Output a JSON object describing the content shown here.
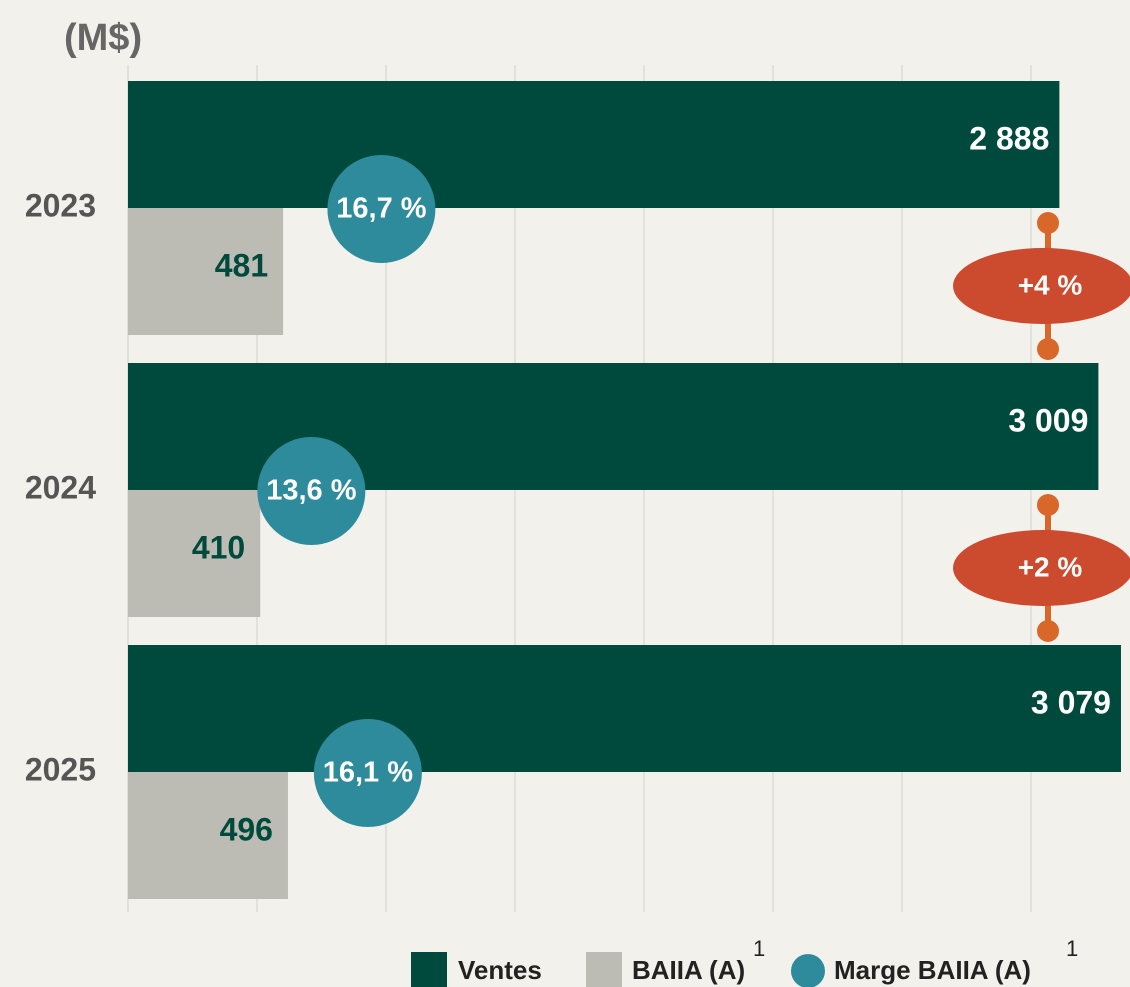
{
  "chart_data": {
    "type": "bar",
    "title": "(M$)",
    "categories": [
      "2023",
      "2024",
      "2025"
    ],
    "series": [
      {
        "name": "Ventes",
        "color": "#004a3d",
        "values": [
          2888,
          3009,
          3079
        ],
        "value_labels": [
          "2 888",
          "3 009",
          "3 079"
        ]
      },
      {
        "name": "BAIIA (A)",
        "note": "1",
        "color": "#bdbcb4",
        "values": [
          481,
          410,
          496
        ]
      },
      {
        "name": "Marge BAIIA (A)",
        "note": "1",
        "color": "#2e8b9b",
        "axis": "y2",
        "values": [
          16.7,
          13.6,
          16.1
        ],
        "value_labels": [
          "16,7 %",
          "13,6 %",
          "16,1 %"
        ]
      }
    ],
    "annotations": [
      "+4 %",
      "+2 %"
    ],
    "xlim": [
      0,
      3107
    ],
    "xticks": [
      0,
      400,
      800,
      1200,
      1600,
      2000,
      2400,
      2800
    ],
    "grid": true
  }
}
